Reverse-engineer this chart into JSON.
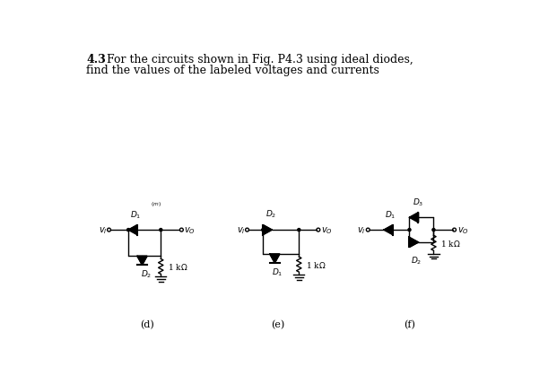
{
  "bg_color": "#ffffff",
  "title_bold": "4.3",
  "title_rest": " For the circuits shown in Fig. P4.3 using ideal diodes,",
  "title_line2": "find the values of the labeled voltages and currents",
  "title_fontsize": 9,
  "label_d": "(d)",
  "label_e": "(e)",
  "label_f": "(f)"
}
